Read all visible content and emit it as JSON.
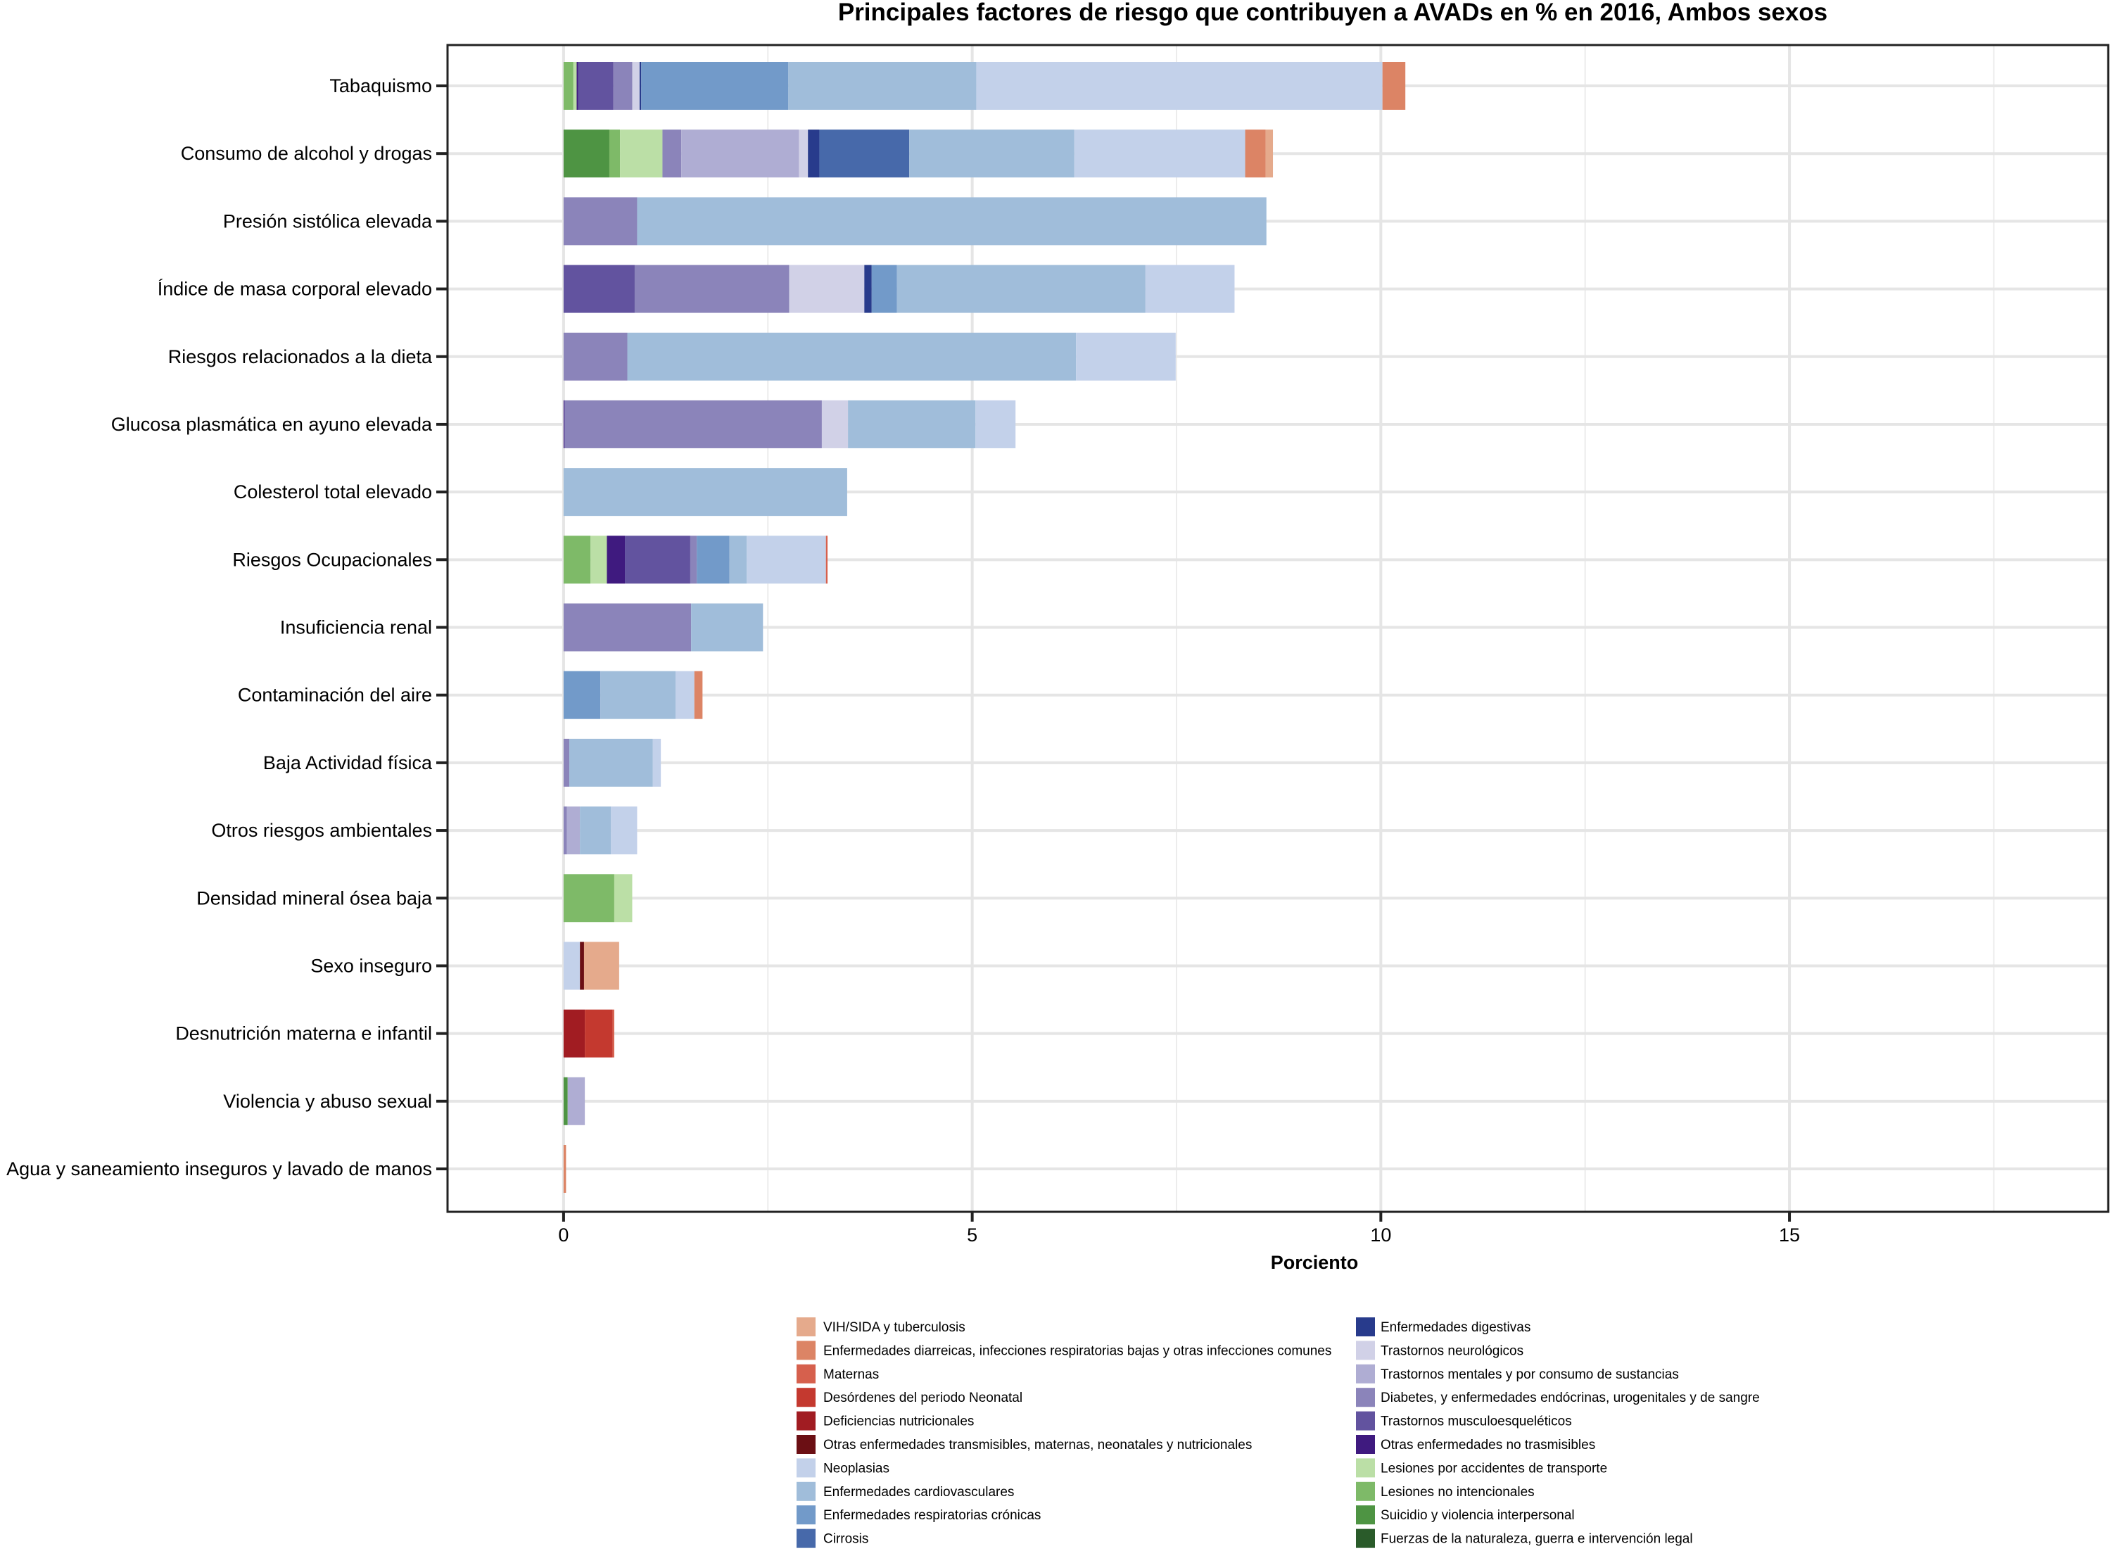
{
  "chart_data": {
    "type": "bar",
    "orientation": "horizontal",
    "stacked": true,
    "title": "Principales factores de riesgo que contribuyen a AVADs en % en 2016, Ambos sexos",
    "xlabel": "Porciento",
    "ylabel": "",
    "xlim": [
      -1.42,
      18.9
    ],
    "xticks": [
      0,
      5,
      10,
      15
    ],
    "xtick_labels": [
      "0",
      "5",
      "10",
      "15"
    ],
    "grid": true,
    "legend_position": "bottom",
    "categories": [
      "Tabaquismo",
      "Consumo de alcohol y drogas",
      "Presión sistólica elevada",
      "Índice de masa corporal elevado",
      "Riesgos relacionados a la dieta",
      "Glucosa plasmática en ayuno elevada",
      "Colesterol total elevado",
      "Riesgos Ocupacionales",
      "Insuficiencia renal",
      "Contaminación del aire",
      "Baja Actividad física ",
      "Otros riesgos ambientales",
      "Densidad mineral ósea baja",
      "Sexo inseguro",
      "Desnutrición materna e infantil",
      "Violencia y abuso sexual",
      "Agua y saneamiento inseguros y lavado de manos"
    ],
    "legend": [
      {
        "key": "vih",
        "label": "VIH/SIDA y tuberculosis",
        "color": "#E5AA8C"
      },
      {
        "key": "diarr",
        "label": "Enfermedades diarreicas, infecciones respiratorias bajas y otras infecciones comunes",
        "color": "#DC8465"
      },
      {
        "key": "matern",
        "label": "Maternas",
        "color": "#D6604D"
      },
      {
        "key": "neonat",
        "label": "Desórdenes del periodo Neonatal",
        "color": "#C4392F"
      },
      {
        "key": "defnut",
        "label": "Deficiencias nutricionales",
        "color": "#A11C22"
      },
      {
        "key": "otrtrans",
        "label": "Otras enfermedades transmisibles, maternas, neonatales y nutricionales",
        "color": "#6B0F14"
      },
      {
        "key": "neopl",
        "label": "Neoplasias",
        "color": "#C3D1EA"
      },
      {
        "key": "cardio",
        "label": "Enfermedades cardiovasculares",
        "color": "#A0BDDA"
      },
      {
        "key": "resp",
        "label": "Enfermedades respiratorias crónicas",
        "color": "#729AC9"
      },
      {
        "key": "cirr",
        "label": "Cirrosis",
        "color": "#4769AA"
      },
      {
        "key": "digest",
        "label": "Enfermedades digestivas",
        "color": "#283B8C"
      },
      {
        "key": "neuro",
        "label": "Trastornos neurológicos",
        "color": "#D1D1E7"
      },
      {
        "key": "mental",
        "label": "Trastornos mentales y por consumo de sustancias",
        "color": "#AFADD3"
      },
      {
        "key": "diab",
        "label": "Diabetes, y enfermedades endócrinas, urogenitales y de sangre",
        "color": "#8B84BA"
      },
      {
        "key": "musc",
        "label": "Trastornos musculoesqueléticos",
        "color": "#62539F"
      },
      {
        "key": "otrnotrans",
        "label": "Otras enfermedades no trasmisibles",
        "color": "#3F1A7F"
      },
      {
        "key": "transp",
        "label": "Lesiones por accidentes de transporte",
        "color": "#BBDFA6"
      },
      {
        "key": "lesnoint",
        "label": "Lesiones no intencionales",
        "color": "#7EBA68"
      },
      {
        "key": "suic",
        "label": "Suicidio y violencia interpersonal",
        "color": "#4E9443"
      },
      {
        "key": "fuerzas",
        "label": "Fuerzas de la naturaleza, guerra e intervención legal",
        "color": "#2A5B2A"
      }
    ],
    "series_order_left_to_right": [
      "fuerzas",
      "suic",
      "lesnoint",
      "transp",
      "otrnotrans",
      "musc",
      "diab",
      "mental",
      "neuro",
      "digest",
      "cirr",
      "resp",
      "cardio",
      "neopl",
      "otrtrans",
      "defnut",
      "neonat",
      "matern",
      "diarr",
      "vih"
    ],
    "values": {
      "Tabaquismo": {
        "lesnoint": 0.12,
        "transp": 0.04,
        "otrnotrans": 0.02,
        "musc": 0.43,
        "diab": 0.23,
        "neuro": 0.09,
        "digest": 0.02,
        "resp": 1.8,
        "cardio": 2.3,
        "neopl": 4.97,
        "diarr": 0.28
      },
      "Consumo de alcohol y drogas": {
        "suic": 0.56,
        "lesnoint": 0.13,
        "transp": 0.52,
        "diab": 0.23,
        "mental": 1.44,
        "neuro": 0.11,
        "digest": 0.14,
        "cirr": 1.1,
        "cardio": 2.02,
        "neopl": 2.09,
        "diarr": 0.25,
        "vih": 0.09
      },
      "Presión sistólica elevada": {
        "diab": 0.9,
        "cardio": 7.7
      },
      "Índice de masa corporal elevado": {
        "musc": 0.87,
        "diab": 1.89,
        "neuro": 0.92,
        "digest": 0.09,
        "resp": 0.31,
        "cardio": 3.04,
        "neopl": 1.09
      },
      "Riesgos relacionados a la dieta": {
        "diab": 0.78,
        "cardio": 5.49,
        "neopl": 1.22
      },
      "Glucosa plasmática en ayuno elevada": {
        "otrnotrans": 0.01,
        "diab": 3.15,
        "neuro": 0.32,
        "cardio": 1.56,
        "neopl": 0.49
      },
      "Colesterol total elevado": {
        "cardio": 3.47
      },
      "Riesgos Ocupacionales": {
        "lesnoint": 0.33,
        "transp": 0.2,
        "otrnotrans": 0.22,
        "musc": 0.8,
        "diab": 0.08,
        "resp": 0.4,
        "cardio": 0.21,
        "neopl": 0.97,
        "matern": 0.02
      },
      "Insuficiencia renal": {
        "diab": 1.56,
        "cardio": 0.88
      },
      "Contaminación del aire": {
        "resp": 0.45,
        "cardio": 0.92,
        "neopl": 0.23,
        "diarr": 0.1
      },
      "Baja Actividad física ": {
        "diab": 0.07,
        "cardio": 1.02,
        "neopl": 0.1
      },
      "Otros riesgos ambientales": {
        "diab": 0.04,
        "mental": 0.16,
        "cardio": 0.38,
        "neopl": 0.32
      },
      "Densidad mineral ósea baja": {
        "lesnoint": 0.62,
        "transp": 0.22
      },
      "Sexo inseguro": {
        "neopl": 0.2,
        "otrtrans": 0.05,
        "vih": 0.43
      },
      "Desnutrición materna e infantil": {
        "defnut": 0.26,
        "neonat": 0.34,
        "matern": 0.02
      },
      "Violencia y abuso sexual": {
        "suic": 0.05,
        "mental": 0.21
      },
      "Agua y saneamiento inseguros y lavado de manos": {
        "diarr": 0.03
      }
    }
  }
}
